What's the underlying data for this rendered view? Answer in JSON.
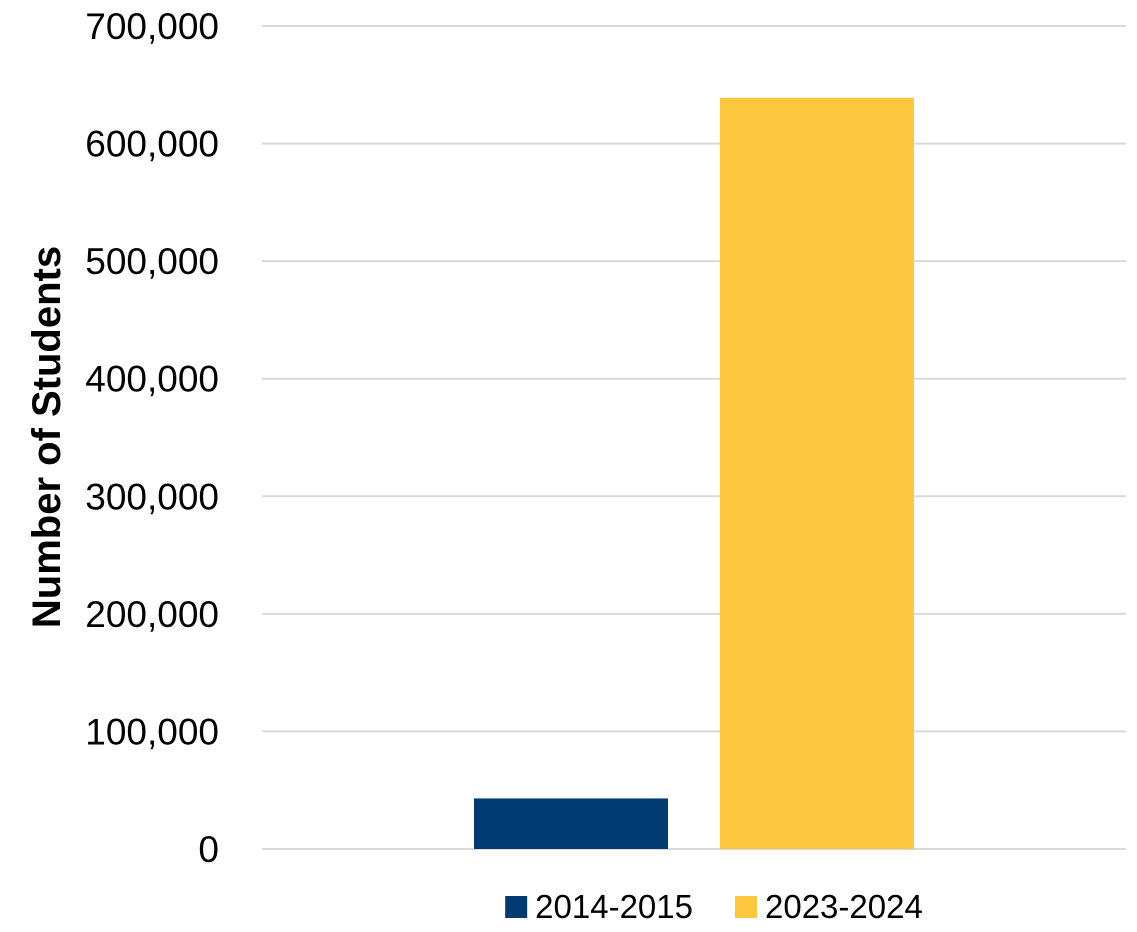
{
  "chart_data": {
    "type": "bar",
    "title": "",
    "xlabel": "",
    "ylabel": "Number of Students",
    "ylim": [
      0,
      700000
    ],
    "yticks": [
      0,
      100000,
      200000,
      300000,
      400000,
      500000,
      600000,
      700000
    ],
    "ytick_labels": [
      "0",
      "100,000",
      "200,000",
      "300,000",
      "400,000",
      "500,000",
      "600,000",
      "700,000"
    ],
    "grid": true,
    "legend_position": "bottom",
    "series": [
      {
        "name": "2014-2015",
        "color": "#003a70",
        "values": [
          43000
        ]
      },
      {
        "name": "2023-2024",
        "color": "#fdc840",
        "values": [
          639000
        ]
      }
    ]
  }
}
